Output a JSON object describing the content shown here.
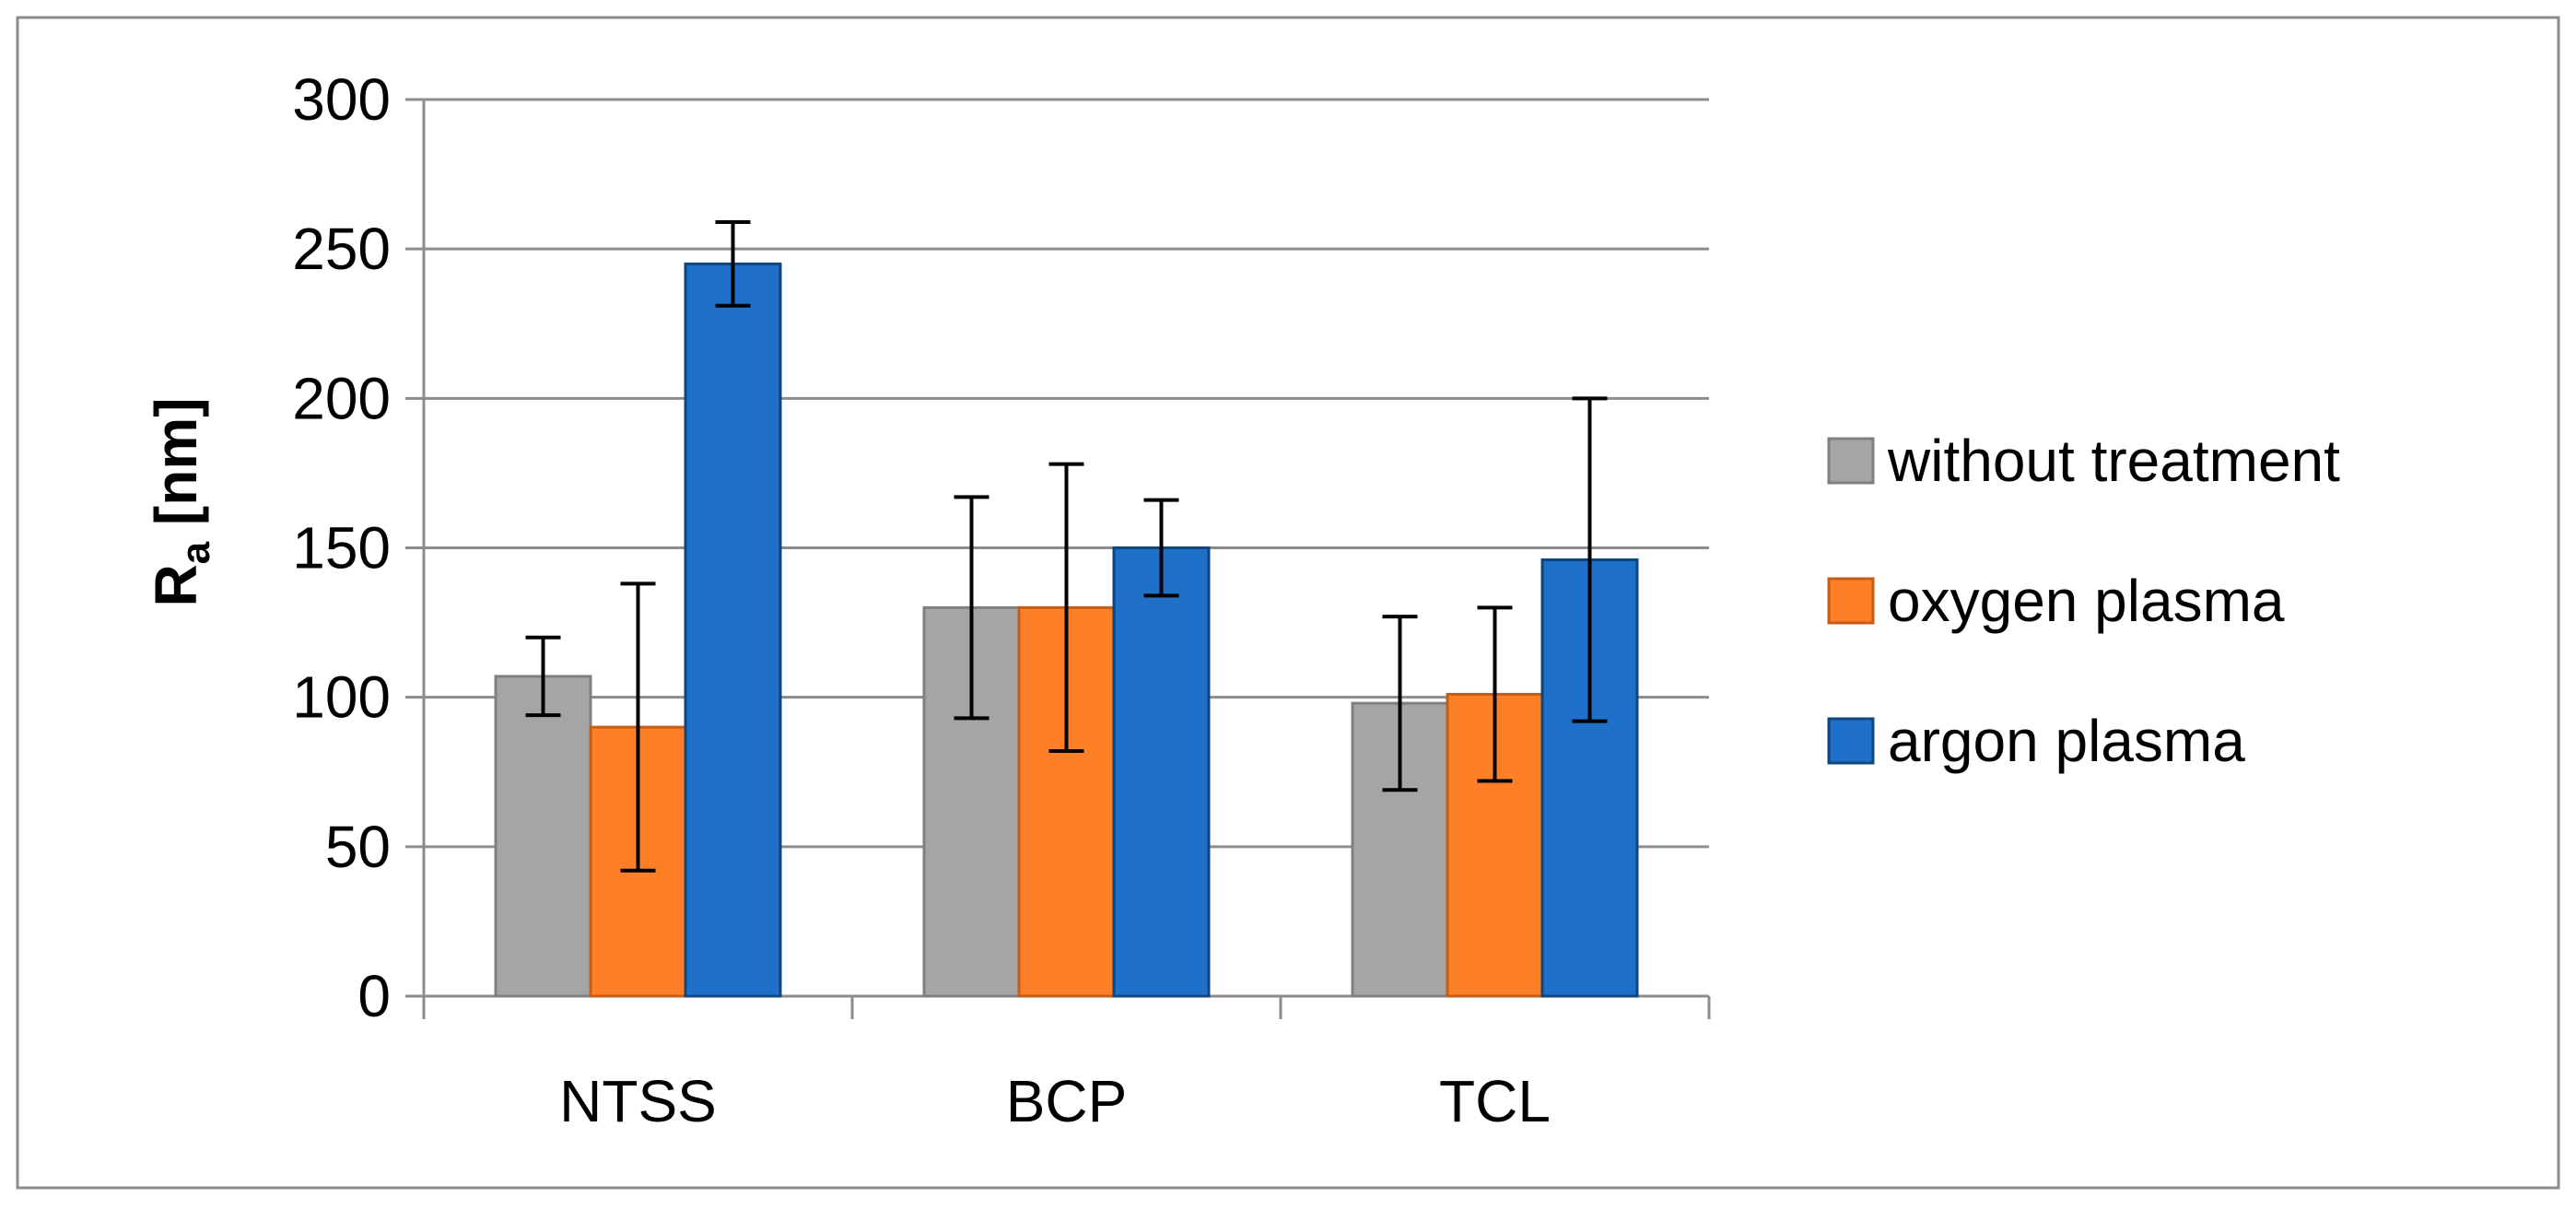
{
  "chart_data": {
    "type": "bar",
    "categories": [
      "NTSS",
      "BCP",
      "TCL"
    ],
    "series": [
      {
        "name": "without treatment",
        "values": [
          107,
          130,
          98
        ],
        "errors": [
          13,
          37,
          29
        ],
        "color": "#a5a5a5",
        "stroke": "#808080"
      },
      {
        "name": "oxygen plasma",
        "values": [
          90,
          130,
          101
        ],
        "errors": [
          48,
          48,
          29
        ],
        "color": "#fd7f28",
        "stroke": "#c45e14"
      },
      {
        "name": "argon plasma",
        "values": [
          245,
          150,
          146
        ],
        "errors": [
          14,
          16,
          54
        ],
        "color": "#1f70c9",
        "stroke": "#10457f"
      }
    ],
    "ylabel_main": "R",
    "ylabel_sub": "a",
    "ylabel_unit": " [nm]",
    "xlabel": "",
    "title": "",
    "ylim": [
      0,
      300
    ],
    "yticks": [
      "0",
      "50",
      "100",
      "150",
      "200",
      "250",
      "300"
    ],
    "grid": true,
    "legend_position": "right"
  }
}
